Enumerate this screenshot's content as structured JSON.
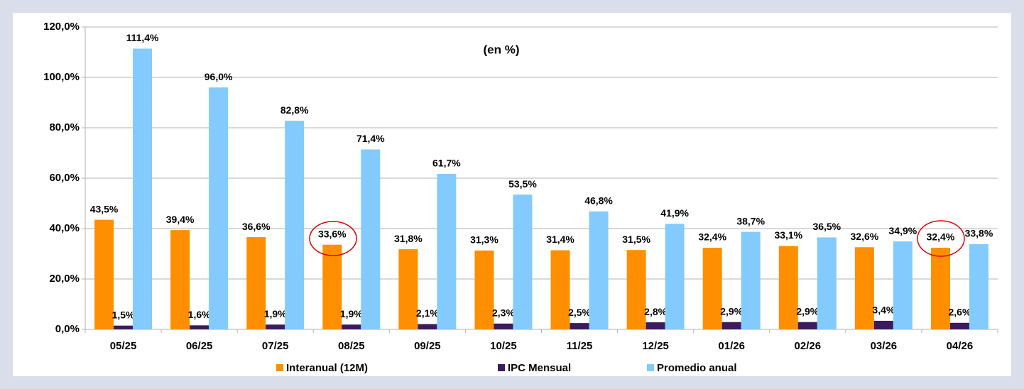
{
  "chart_data": {
    "type": "bar",
    "subtitle": "(en %)",
    "categories": [
      "05/25",
      "06/25",
      "07/25",
      "08/25",
      "09/25",
      "10/25",
      "11/25",
      "12/25",
      "01/26",
      "02/26",
      "03/26",
      "04/26"
    ],
    "series": [
      {
        "name": "Interanual (12M)",
        "color": "#ff8f00",
        "values": [
          43.5,
          39.4,
          36.6,
          33.6,
          31.8,
          31.3,
          31.4,
          31.5,
          32.4,
          33.1,
          32.6,
          32.4
        ],
        "value_labels": [
          "43,5%",
          "39,4%",
          "36,6%",
          "33,6%",
          "31,8%",
          "31,3%",
          "31,4%",
          "31,5%",
          "32,4%",
          "33,1%",
          "32,6%",
          "32,4%"
        ]
      },
      {
        "name": "IPC Mensual",
        "color": "#3b1b5c",
        "values": [
          1.5,
          1.6,
          1.9,
          1.9,
          2.1,
          2.3,
          2.5,
          2.8,
          2.9,
          2.9,
          3.4,
          2.6
        ],
        "value_labels": [
          "1,5%",
          "1,6%",
          "1,9%",
          "1,9%",
          "2,1%",
          "2,3%",
          "2,5%",
          "2,8%",
          "2,9%",
          "2,9%",
          "3,4%",
          "2,6%"
        ]
      },
      {
        "name": "Promedio anual",
        "color": "#83caff",
        "values": [
          111.4,
          96.0,
          82.8,
          71.4,
          61.7,
          53.5,
          46.8,
          41.9,
          38.7,
          36.5,
          34.9,
          33.8
        ],
        "value_labels": [
          "111,4%",
          "96,0%",
          "82,8%",
          "71,4%",
          "61,7%",
          "53,5%",
          "46,8%",
          "41,9%",
          "38,7%",
          "36,5%",
          "34,9%",
          "33,8%"
        ]
      }
    ],
    "ylim": [
      0,
      120
    ],
    "yticks": [
      {
        "value": 0,
        "label": "0,0%"
      },
      {
        "value": 20,
        "label": "20,0%"
      },
      {
        "value": 40,
        "label": "40,0%"
      },
      {
        "value": 60,
        "label": "60,0%"
      },
      {
        "value": 80,
        "label": "80,0%"
      },
      {
        "value": 100,
        "label": "100,0%"
      },
      {
        "value": 120,
        "label": "120,0%"
      }
    ],
    "grid": true,
    "legend": "bottom"
  }
}
